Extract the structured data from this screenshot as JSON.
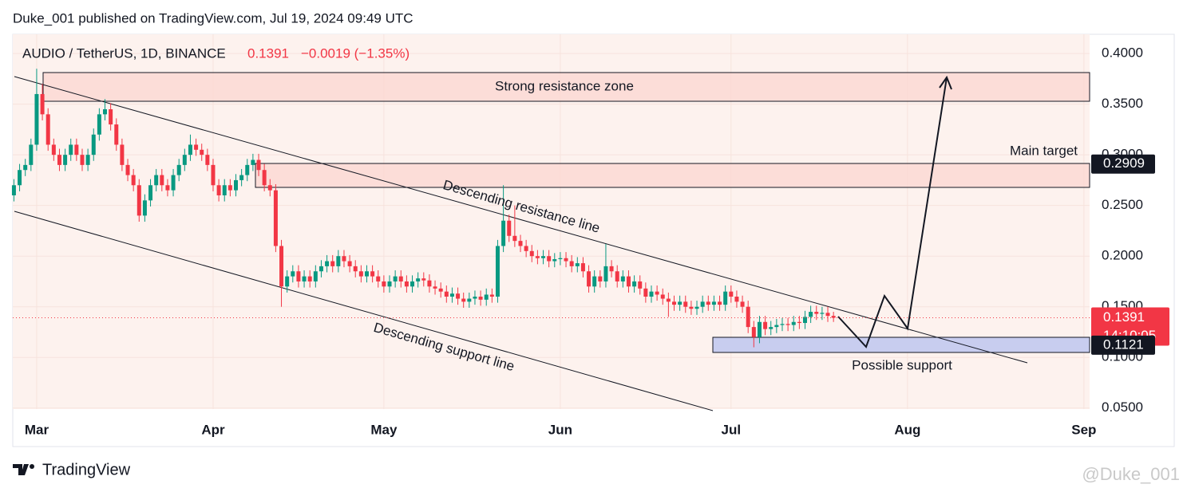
{
  "header": "Duke_001 published on TradingView.com, Jul 19, 2024 09:49 UTC",
  "footer": {
    "logo": "TradingView",
    "watermark": "@Duke_001"
  },
  "chart_data": {
    "type": "candlestick",
    "title": "AUDIO / TetherUS, 1D, BINANCE",
    "last_price": 0.1391,
    "change": "−0.0019 (−1.35%)",
    "countdown": "14:10:05",
    "price_lines": [
      0.2909,
      0.1121
    ],
    "annotations": [
      "Strong resistance zone",
      "Main target",
      "Descending resistance line",
      "Descending support line",
      "Possible support"
    ],
    "up_color": "#089981",
    "down_color": "#f23645",
    "xlim": [
      -0.2,
      189
    ],
    "xticks": [
      {
        "value": 4,
        "label": "Mar"
      },
      {
        "value": 35,
        "label": "Apr"
      },
      {
        "value": 65,
        "label": "May"
      },
      {
        "value": 96,
        "label": "Jun"
      },
      {
        "value": 126,
        "label": "Jul"
      },
      {
        "value": 157,
        "label": "Aug"
      },
      {
        "value": 188,
        "label": "Sep"
      }
    ],
    "ylim": [
      0.049,
      0.419
    ],
    "yticks": [
      {
        "value": 0.05,
        "label": "0.0500"
      },
      {
        "value": 0.1,
        "label": "0.1000"
      },
      {
        "value": 0.15,
        "label": "0.1500"
      },
      {
        "value": 0.2,
        "label": "0.2000"
      },
      {
        "value": 0.25,
        "label": "0.2500"
      },
      {
        "value": 0.3,
        "label": "0.3000"
      },
      {
        "value": 0.35,
        "label": "0.3500"
      },
      {
        "value": 0.4,
        "label": "0.4000"
      }
    ],
    "open": [
      0.26,
      0.27,
      0.285,
      0.29,
      0.31,
      0.36,
      0.34,
      0.31,
      0.3,
      0.29,
      0.3,
      0.31,
      0.3,
      0.29,
      0.3,
      0.32,
      0.34,
      0.345,
      0.33,
      0.31,
      0.29,
      0.28,
      0.27,
      0.24,
      0.255,
      0.27,
      0.28,
      0.27,
      0.265,
      0.28,
      0.29,
      0.3,
      0.31,
      0.305,
      0.3,
      0.29,
      0.27,
      0.26,
      0.27,
      0.265,
      0.275,
      0.28,
      0.29,
      0.295,
      0.285,
      0.27,
      0.265,
      0.21,
      0.17,
      0.18,
      0.185,
      0.175,
      0.18,
      0.175,
      0.185,
      0.19,
      0.195,
      0.19,
      0.2,
      0.195,
      0.19,
      0.185,
      0.18,
      0.185,
      0.18,
      0.175,
      0.17,
      0.175,
      0.18,
      0.175,
      0.17,
      0.175,
      0.178,
      0.176,
      0.17,
      0.168,
      0.165,
      0.16,
      0.163,
      0.158,
      0.155,
      0.158,
      0.16,
      0.157,
      0.162,
      0.16,
      0.21,
      0.235,
      0.22,
      0.215,
      0.21,
      0.205,
      0.2,
      0.198,
      0.2,
      0.195,
      0.197,
      0.198,
      0.195,
      0.19,
      0.193,
      0.185,
      0.17,
      0.18,
      0.175,
      0.19,
      0.185,
      0.175,
      0.18,
      0.17,
      0.175,
      0.168,
      0.16,
      0.165,
      0.162,
      0.158,
      0.155,
      0.152,
      0.155,
      0.15,
      0.148,
      0.15,
      0.155,
      0.152,
      0.155,
      0.152,
      0.165,
      0.16,
      0.155,
      0.15,
      0.13,
      0.12,
      0.135,
      0.128,
      0.13,
      0.132,
      0.133,
      0.132,
      0.135,
      0.134,
      0.14,
      0.145,
      0.143,
      0.144,
      0.141
    ],
    "high": [
      0.276,
      0.291,
      0.296,
      0.316,
      0.385,
      0.37,
      0.346,
      0.316,
      0.306,
      0.306,
      0.316,
      0.316,
      0.306,
      0.306,
      0.326,
      0.346,
      0.355,
      0.351,
      0.336,
      0.316,
      0.296,
      0.286,
      0.276,
      0.261,
      0.276,
      0.286,
      0.286,
      0.276,
      0.286,
      0.296,
      0.306,
      0.32,
      0.316,
      0.311,
      0.306,
      0.296,
      0.276,
      0.276,
      0.276,
      0.281,
      0.286,
      0.296,
      0.301,
      0.301,
      0.291,
      0.276,
      0.271,
      0.216,
      0.186,
      0.191,
      0.191,
      0.186,
      0.186,
      0.191,
      0.196,
      0.201,
      0.201,
      0.206,
      0.206,
      0.201,
      0.196,
      0.191,
      0.191,
      0.191,
      0.186,
      0.181,
      0.181,
      0.186,
      0.186,
      0.181,
      0.181,
      0.184,
      0.184,
      0.182,
      0.176,
      0.174,
      0.171,
      0.169,
      0.169,
      0.164,
      0.164,
      0.166,
      0.166,
      0.168,
      0.168,
      0.216,
      0.27,
      0.241,
      0.25,
      0.221,
      0.216,
      0.211,
      0.206,
      0.206,
      0.206,
      0.203,
      0.204,
      0.204,
      0.201,
      0.199,
      0.199,
      0.191,
      0.186,
      0.186,
      0.212,
      0.196,
      0.191,
      0.186,
      0.186,
      0.181,
      0.181,
      0.174,
      0.171,
      0.171,
      0.168,
      0.164,
      0.161,
      0.161,
      0.161,
      0.156,
      0.156,
      0.161,
      0.161,
      0.161,
      0.161,
      0.171,
      0.171,
      0.166,
      0.161,
      0.156,
      0.136,
      0.141,
      0.141,
      0.136,
      0.138,
      0.139,
      0.139,
      0.141,
      0.141,
      0.146,
      0.151,
      0.151,
      0.15,
      0.15,
      0.145
    ],
    "low": [
      0.254,
      0.264,
      0.279,
      0.284,
      0.304,
      0.334,
      0.304,
      0.294,
      0.284,
      0.284,
      0.294,
      0.294,
      0.284,
      0.284,
      0.294,
      0.314,
      0.334,
      0.324,
      0.304,
      0.284,
      0.274,
      0.264,
      0.234,
      0.234,
      0.249,
      0.264,
      0.264,
      0.259,
      0.259,
      0.274,
      0.284,
      0.294,
      0.299,
      0.294,
      0.284,
      0.264,
      0.254,
      0.254,
      0.259,
      0.259,
      0.269,
      0.274,
      0.284,
      0.279,
      0.264,
      0.259,
      0.204,
      0.15,
      0.164,
      0.174,
      0.169,
      0.169,
      0.169,
      0.169,
      0.179,
      0.184,
      0.184,
      0.184,
      0.189,
      0.184,
      0.179,
      0.174,
      0.174,
      0.174,
      0.169,
      0.164,
      0.164,
      0.169,
      0.169,
      0.164,
      0.164,
      0.169,
      0.17,
      0.164,
      0.162,
      0.159,
      0.154,
      0.154,
      0.152,
      0.149,
      0.149,
      0.152,
      0.151,
      0.151,
      0.154,
      0.154,
      0.204,
      0.214,
      0.209,
      0.204,
      0.199,
      0.194,
      0.192,
      0.192,
      0.189,
      0.189,
      0.191,
      0.189,
      0.184,
      0.184,
      0.179,
      0.164,
      0.164,
      0.169,
      0.169,
      0.179,
      0.169,
      0.169,
      0.164,
      0.164,
      0.162,
      0.154,
      0.154,
      0.156,
      0.152,
      0.14,
      0.146,
      0.146,
      0.144,
      0.142,
      0.142,
      0.144,
      0.146,
      0.146,
      0.146,
      0.146,
      0.154,
      0.149,
      0.144,
      0.124,
      0.11,
      0.114,
      0.122,
      0.122,
      0.124,
      0.126,
      0.126,
      0.126,
      0.128,
      0.128,
      0.134,
      0.137,
      0.137,
      0.135,
      0.135
    ],
    "close": [
      0.27,
      0.285,
      0.29,
      0.31,
      0.36,
      0.34,
      0.31,
      0.3,
      0.29,
      0.3,
      0.31,
      0.3,
      0.29,
      0.3,
      0.32,
      0.34,
      0.345,
      0.33,
      0.31,
      0.29,
      0.28,
      0.27,
      0.24,
      0.255,
      0.27,
      0.28,
      0.27,
      0.265,
      0.28,
      0.29,
      0.3,
      0.31,
      0.305,
      0.3,
      0.29,
      0.27,
      0.26,
      0.27,
      0.265,
      0.275,
      0.28,
      0.29,
      0.295,
      0.285,
      0.27,
      0.265,
      0.21,
      0.17,
      0.18,
      0.185,
      0.175,
      0.18,
      0.175,
      0.185,
      0.19,
      0.195,
      0.19,
      0.2,
      0.195,
      0.19,
      0.185,
      0.18,
      0.185,
      0.18,
      0.175,
      0.17,
      0.175,
      0.18,
      0.175,
      0.17,
      0.175,
      0.178,
      0.176,
      0.17,
      0.168,
      0.165,
      0.16,
      0.163,
      0.158,
      0.155,
      0.158,
      0.16,
      0.157,
      0.162,
      0.16,
      0.21,
      0.235,
      0.22,
      0.215,
      0.21,
      0.205,
      0.2,
      0.198,
      0.2,
      0.195,
      0.197,
      0.198,
      0.195,
      0.19,
      0.193,
      0.185,
      0.17,
      0.18,
      0.175,
      0.19,
      0.185,
      0.175,
      0.18,
      0.17,
      0.175,
      0.168,
      0.16,
      0.165,
      0.162,
      0.158,
      0.155,
      0.152,
      0.155,
      0.15,
      0.148,
      0.15,
      0.155,
      0.152,
      0.155,
      0.152,
      0.165,
      0.16,
      0.155,
      0.15,
      0.13,
      0.12,
      0.135,
      0.128,
      0.13,
      0.132,
      0.133,
      0.132,
      0.135,
      0.134,
      0.14,
      0.145,
      0.143,
      0.144,
      0.141,
      0.1391
    ]
  }
}
